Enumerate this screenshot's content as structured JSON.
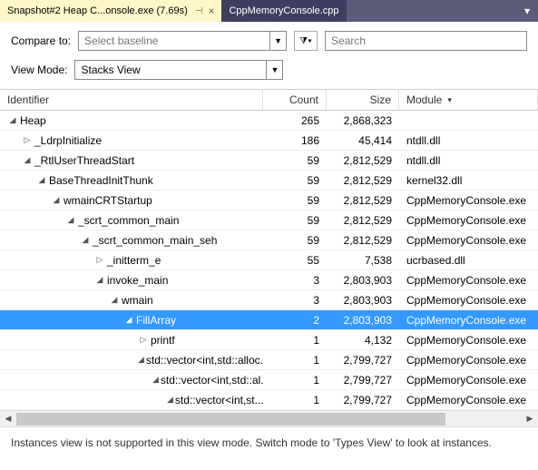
{
  "tabs": {
    "active": {
      "label": "Snapshot#2 Heap C...onsole.exe (7.69s)"
    },
    "inactive": {
      "label": "CppMemoryConsole.cpp"
    }
  },
  "toolbar": {
    "compare_label": "Compare to:",
    "baseline_placeholder": "Select baseline",
    "search_placeholder": "Search"
  },
  "viewmode": {
    "label": "View Mode:",
    "value": "Stacks View"
  },
  "headers": {
    "identifier": "Identifier",
    "count": "Count",
    "size": "Size",
    "module": "Module"
  },
  "rows": [
    {
      "indent": 0,
      "exp": "◢",
      "id": "Heap",
      "count": "265",
      "size": "2,868,323",
      "module": "",
      "sel": false
    },
    {
      "indent": 1,
      "exp": "▷",
      "id": "_LdrpInitialize",
      "count": "186",
      "size": "45,414",
      "module": "ntdll.dll",
      "sel": false
    },
    {
      "indent": 1,
      "exp": "◢",
      "id": "_RtlUserThreadStart",
      "count": "59",
      "size": "2,812,529",
      "module": "ntdll.dll",
      "sel": false
    },
    {
      "indent": 2,
      "exp": "◢",
      "id": "BaseThreadInitThunk",
      "count": "59",
      "size": "2,812,529",
      "module": "kernel32.dll",
      "sel": false
    },
    {
      "indent": 3,
      "exp": "◢",
      "id": "wmainCRTStartup",
      "count": "59",
      "size": "2,812,529",
      "module": "CppMemoryConsole.exe",
      "sel": false
    },
    {
      "indent": 4,
      "exp": "◢",
      "id": "_scrt_common_main",
      "count": "59",
      "size": "2,812,529",
      "module": "CppMemoryConsole.exe",
      "sel": false
    },
    {
      "indent": 5,
      "exp": "◢",
      "id": "_scrt_common_main_seh",
      "count": "59",
      "size": "2,812,529",
      "module": "CppMemoryConsole.exe",
      "sel": false
    },
    {
      "indent": 6,
      "exp": "▷",
      "id": "_initterm_e",
      "count": "55",
      "size": "7,538",
      "module": "ucrbased.dll",
      "sel": false
    },
    {
      "indent": 6,
      "exp": "◢",
      "id": "invoke_main",
      "count": "3",
      "size": "2,803,903",
      "module": "CppMemoryConsole.exe",
      "sel": false
    },
    {
      "indent": 7,
      "exp": "◢",
      "id": "wmain",
      "count": "3",
      "size": "2,803,903",
      "module": "CppMemoryConsole.exe",
      "sel": false
    },
    {
      "indent": 8,
      "exp": "◢",
      "id": "FillArray",
      "count": "2",
      "size": "2,803,903",
      "module": "CppMemoryConsole.exe",
      "sel": true
    },
    {
      "indent": 9,
      "exp": "▷",
      "id": "printf",
      "count": "1",
      "size": "4,132",
      "module": "CppMemoryConsole.exe",
      "sel": false
    },
    {
      "indent": 9,
      "exp": "◢",
      "id": "std::vector<int,std::alloc...",
      "count": "1",
      "size": "2,799,727",
      "module": "CppMemoryConsole.exe",
      "sel": false
    },
    {
      "indent": 10,
      "exp": "◢",
      "id": "std::vector<int,std::al...",
      "count": "1",
      "size": "2,799,727",
      "module": "CppMemoryConsole.exe",
      "sel": false
    },
    {
      "indent": 11,
      "exp": "◢",
      "id": "std::vector<int,st...",
      "count": "1",
      "size": "2,799,727",
      "module": "CppMemoryConsole.exe",
      "sel": false
    }
  ],
  "footer": "Instances view is not supported in this view mode. Switch mode to 'Types View' to look at instances."
}
